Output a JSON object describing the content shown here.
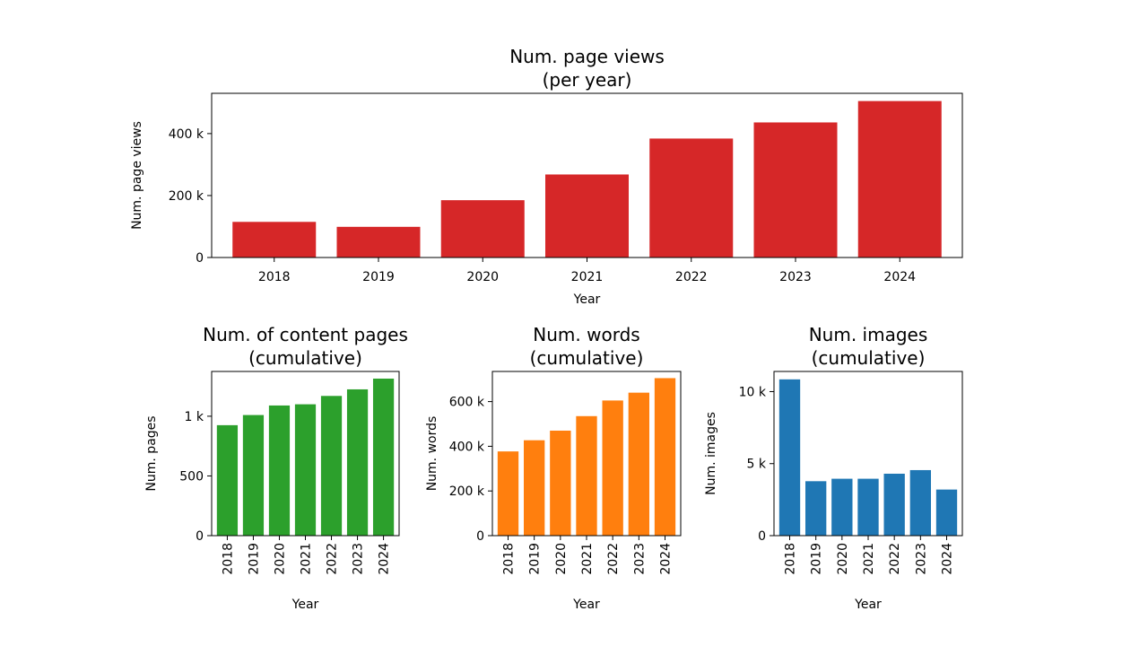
{
  "chart_data": [
    {
      "type": "bar",
      "title": "Num. page views\n(per year)",
      "xlabel": "Year",
      "ylabel": "Num. page views",
      "categories": [
        "2018",
        "2019",
        "2020",
        "2021",
        "2022",
        "2023",
        "2024"
      ],
      "values": [
        115000,
        99000,
        185000,
        268000,
        384000,
        436000,
        505000
      ],
      "ylim": [
        0,
        530000
      ],
      "yticks": [
        0,
        200000,
        400000
      ],
      "ytick_labels": [
        "0",
        "200 k",
        "400 k"
      ],
      "color": "#d62728",
      "xtick_rotation": 0
    },
    {
      "type": "bar",
      "title": "Num. of content pages\n(cumulative)",
      "xlabel": "Year",
      "ylabel": "Num. pages",
      "categories": [
        "2018",
        "2019",
        "2020",
        "2021",
        "2022",
        "2023",
        "2024"
      ],
      "values": [
        925,
        1010,
        1090,
        1100,
        1170,
        1225,
        1315
      ],
      "ylim": [
        0,
        1375
      ],
      "yticks": [
        0,
        500,
        1000
      ],
      "ytick_labels": [
        "0",
        "500",
        "1 k"
      ],
      "color": "#2ca02c",
      "xtick_rotation": -90
    },
    {
      "type": "bar",
      "title": "Num. words\n(cumulative)",
      "xlabel": "Year",
      "ylabel": "Num. words",
      "categories": [
        "2018",
        "2019",
        "2020",
        "2021",
        "2022",
        "2023",
        "2024"
      ],
      "values": [
        377000,
        427000,
        470000,
        535000,
        605000,
        640000,
        705000
      ],
      "ylim": [
        0,
        735000
      ],
      "yticks": [
        0,
        200000,
        400000,
        600000
      ],
      "ytick_labels": [
        "0",
        "200 k",
        "400 k",
        "600 k"
      ],
      "color": "#ff7f0e",
      "xtick_rotation": -90
    },
    {
      "type": "bar",
      "title": "Num. images\n(cumulative)",
      "xlabel": "Year",
      "ylabel": "Num. images",
      "categories": [
        "2018",
        "2019",
        "2020",
        "2021",
        "2022",
        "2023",
        "2024"
      ],
      "values": [
        10850,
        3780,
        3950,
        3950,
        4300,
        4550,
        3200
      ],
      "ylim": [
        0,
        11400
      ],
      "yticks": [
        0,
        5000,
        10000
      ],
      "ytick_labels": [
        "0",
        "5 k",
        "10 k"
      ],
      "color": "#1f77b4",
      "xtick_rotation": -90
    }
  ]
}
